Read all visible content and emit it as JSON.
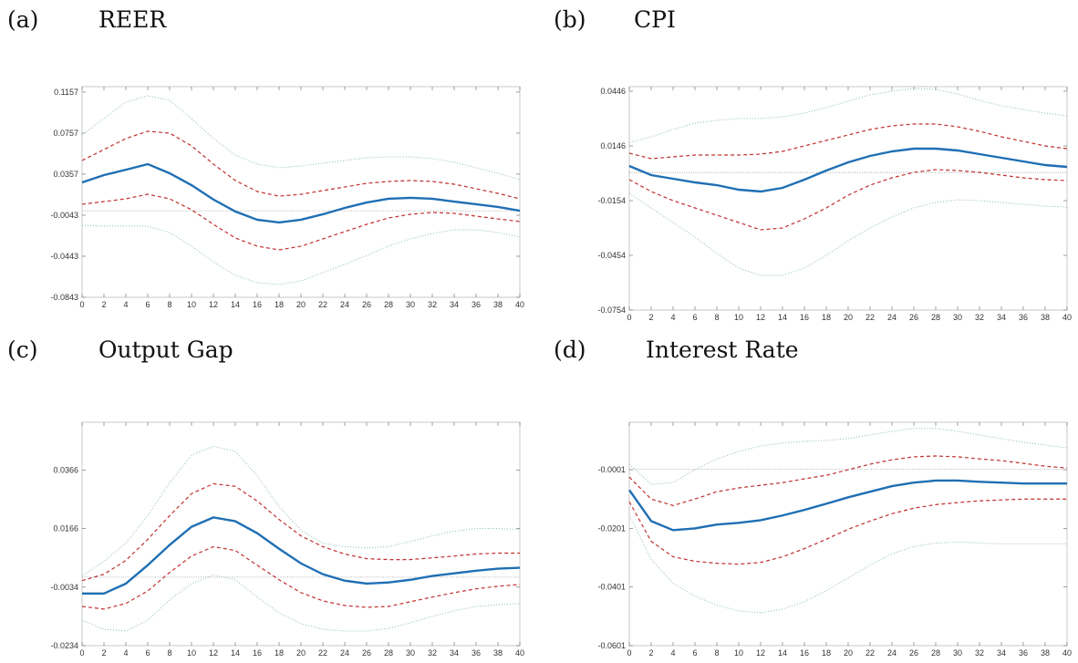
{
  "chart_data": [
    {
      "type": "line",
      "panel_label": "(a)",
      "title": "REER",
      "x": [
        0,
        2,
        4,
        6,
        8,
        10,
        12,
        14,
        16,
        18,
        20,
        22,
        24,
        26,
        28,
        30,
        32,
        34,
        36,
        38,
        40
      ],
      "xlim": [
        0,
        40
      ],
      "xticks": [
        0,
        2,
        4,
        6,
        8,
        10,
        12,
        14,
        16,
        18,
        20,
        22,
        24,
        26,
        28,
        30,
        32,
        34,
        36,
        38,
        40
      ],
      "ylim": [
        -0.0843,
        0.121
      ],
      "yticks": [
        -0.0843,
        -0.0443,
        -0.0043,
        0.0357,
        0.0757,
        0.1157
      ],
      "reference_line": 0,
      "series": [
        {
          "color": "#8cbcb0",
          "style": "dotted",
          "values": [
            0.0739,
            0.0899,
            0.1059,
            0.1121,
            0.1077,
            0.0899,
            0.0704,
            0.0544,
            0.0455,
            0.0419,
            0.0437,
            0.0464,
            0.049,
            0.0517,
            0.0526,
            0.0526,
            0.0508,
            0.0473,
            0.0419,
            0.0366,
            0.0304
          ]
        },
        {
          "color": "#8cbcb0",
          "style": "dotted",
          "values": [
            -0.0141,
            -0.015,
            -0.015,
            -0.015,
            -0.0212,
            -0.0345,
            -0.0497,
            -0.063,
            -0.0701,
            -0.0719,
            -0.0683,
            -0.0603,
            -0.0523,
            -0.0434,
            -0.0345,
            -0.0274,
            -0.0221,
            -0.0185,
            -0.0185,
            -0.0212,
            -0.0256
          ]
        },
        {
          "color": "#c0302f",
          "style": "dashed",
          "values": [
            0.049,
            0.0597,
            0.0704,
            0.0775,
            0.0757,
            0.0633,
            0.0455,
            0.0295,
            0.0188,
            0.0143,
            0.0161,
            0.0197,
            0.0232,
            0.0268,
            0.0286,
            0.0295,
            0.0286,
            0.0259,
            0.0215,
            0.017,
            0.0117
          ]
        },
        {
          "color": "#c0302f",
          "style": "dashed",
          "values": [
            0.0064,
            0.009,
            0.0117,
            0.0161,
            0.0117,
            0.001,
            -0.0132,
            -0.0265,
            -0.0345,
            -0.0381,
            -0.0345,
            -0.0274,
            -0.0203,
            -0.0132,
            -0.007,
            -0.0034,
            -0.0016,
            -0.0025,
            -0.0052,
            -0.0079,
            -0.0105
          ]
        },
        {
          "color": "#1f6fb4",
          "style": "solid",
          "values": [
            0.0277,
            0.0348,
            0.04,
            0.0455,
            0.0366,
            0.025,
            0.011,
            -0.0007,
            -0.0087,
            -0.0114,
            -0.0087,
            -0.0034,
            0.0028,
            0.0081,
            0.0117,
            0.0126,
            0.0117,
            0.009,
            0.0064,
            0.0037,
            0.0001
          ]
        }
      ]
    },
    {
      "type": "line",
      "panel_label": "(b)",
      "title": "CPI",
      "x": [
        0,
        2,
        4,
        6,
        8,
        10,
        12,
        14,
        16,
        18,
        20,
        22,
        24,
        26,
        28,
        30,
        32,
        34,
        36,
        38,
        40
      ],
      "xlim": [
        0,
        40
      ],
      "xticks": [
        0,
        2,
        4,
        6,
        8,
        10,
        12,
        14,
        16,
        18,
        20,
        22,
        24,
        26,
        28,
        30,
        32,
        34,
        36,
        38,
        40
      ],
      "ylim": [
        -0.0754,
        0.0471
      ],
      "yticks": [
        -0.0754,
        -0.0454,
        -0.0154,
        0.0146,
        0.0446
      ],
      "reference_line": 0,
      "series": [
        {
          "color": "#8cbcb0",
          "style": "dotted",
          "values": [
            0.0166,
            0.0196,
            0.0236,
            0.0271,
            0.0286,
            0.0296,
            0.0296,
            0.0306,
            0.0326,
            0.0356,
            0.0391,
            0.0426,
            0.0446,
            0.0461,
            0.0456,
            0.0431,
            0.0396,
            0.0366,
            0.0346,
            0.0326,
            0.0311
          ]
        },
        {
          "color": "#8cbcb0",
          "style": "dotted",
          "values": [
            -0.0114,
            -0.0194,
            -0.0274,
            -0.0354,
            -0.0444,
            -0.0524,
            -0.0564,
            -0.0564,
            -0.0524,
            -0.0454,
            -0.0374,
            -0.0304,
            -0.0244,
            -0.0194,
            -0.0164,
            -0.0149,
            -0.0154,
            -0.0164,
            -0.0174,
            -0.0184,
            -0.0189
          ]
        },
        {
          "color": "#c0302f",
          "style": "dashed",
          "values": [
            0.0106,
            0.0076,
            0.0086,
            0.0096,
            0.0096,
            0.0096,
            0.0101,
            0.0116,
            0.0146,
            0.0176,
            0.0206,
            0.0236,
            0.0256,
            0.0266,
            0.0266,
            0.0251,
            0.0226,
            0.0196,
            0.0171,
            0.0146,
            0.0131
          ]
        },
        {
          "color": "#c0302f",
          "style": "dashed",
          "values": [
            -0.0039,
            -0.0104,
            -0.0154,
            -0.0194,
            -0.0234,
            -0.0274,
            -0.0314,
            -0.0304,
            -0.0254,
            -0.0194,
            -0.0124,
            -0.0069,
            -0.0029,
            0.0001,
            0.0016,
            0.0011,
            0.0001,
            -0.0014,
            -0.0029,
            -0.0039,
            -0.0044
          ]
        },
        {
          "color": "#1f6fb4",
          "style": "solid",
          "values": [
            0.0036,
            -0.0014,
            -0.0034,
            -0.0054,
            -0.0069,
            -0.0094,
            -0.0104,
            -0.0084,
            -0.0039,
            0.0011,
            0.0056,
            0.0091,
            0.0116,
            0.0131,
            0.0131,
            0.0121,
            0.0101,
            0.0081,
            0.0061,
            0.0041,
            0.0031
          ]
        }
      ]
    },
    {
      "type": "line",
      "panel_label": "(c)",
      "title": "Output Gap",
      "x": [
        0,
        2,
        4,
        6,
        8,
        10,
        12,
        14,
        16,
        18,
        20,
        22,
        24,
        26,
        28,
        30,
        32,
        34,
        36,
        38,
        40
      ],
      "xlim": [
        0,
        40
      ],
      "xticks": [
        0,
        2,
        4,
        6,
        8,
        10,
        12,
        14,
        16,
        18,
        20,
        22,
        24,
        26,
        28,
        30,
        32,
        34,
        36,
        38,
        40
      ],
      "ylim": [
        -0.0234,
        0.0529
      ],
      "yticks": [
        -0.0234,
        -0.0034,
        0.0166,
        0.0366
      ],
      "reference_line": 0,
      "series": [
        {
          "color": "#8cbcb0",
          "style": "dotted",
          "values": [
            0.0004,
            0.0054,
            0.0116,
            0.021,
            0.0322,
            0.0416,
            0.0447,
            0.0429,
            0.0347,
            0.0241,
            0.016,
            0.0116,
            0.0104,
            0.01,
            0.0104,
            0.0122,
            0.0141,
            0.0157,
            0.0166,
            0.0166,
            0.0163
          ]
        },
        {
          "color": "#8cbcb0",
          "style": "dotted",
          "values": [
            -0.0147,
            -0.0178,
            -0.0184,
            -0.0147,
            -0.0078,
            -0.0022,
            0.0007,
            -0.0009,
            -0.0068,
            -0.0122,
            -0.0159,
            -0.0178,
            -0.0184,
            -0.0184,
            -0.0175,
            -0.0156,
            -0.0134,
            -0.0115,
            -0.01,
            -0.0094,
            -0.009
          ]
        },
        {
          "color": "#c0302f",
          "style": "dashed",
          "values": [
            -0.0012,
            0.001,
            0.0057,
            0.0129,
            0.021,
            0.0285,
            0.0319,
            0.031,
            0.026,
            0.0197,
            0.0141,
            0.0104,
            0.0079,
            0.0063,
            0.006,
            0.006,
            0.0066,
            0.0072,
            0.0079,
            0.0082,
            0.0082
          ]
        },
        {
          "color": "#c0302f",
          "style": "dashed",
          "values": [
            -0.01,
            -0.0109,
            -0.009,
            -0.0047,
            0.0016,
            0.0072,
            0.0104,
            0.0091,
            0.0041,
            -0.0009,
            -0.0053,
            -0.0081,
            -0.0097,
            -0.0103,
            -0.01,
            -0.0084,
            -0.0068,
            -0.0053,
            -0.004,
            -0.0031,
            -0.0025
          ]
        },
        {
          "color": "#1f6fb4",
          "style": "solid",
          "values": [
            -0.0056,
            -0.0056,
            -0.0022,
            0.0041,
            0.011,
            0.0172,
            0.0204,
            0.0191,
            0.015,
            0.0097,
            0.0047,
            0.001,
            -0.0012,
            -0.0022,
            -0.0018,
            -0.0009,
            0.0004,
            0.0013,
            0.0022,
            0.0029,
            0.0032
          ]
        }
      ]
    },
    {
      "type": "line",
      "panel_label": "(d)",
      "title": "Interest Rate",
      "x": [
        0,
        2,
        4,
        6,
        8,
        10,
        12,
        14,
        16,
        18,
        20,
        22,
        24,
        26,
        28,
        30,
        32,
        34,
        36,
        38,
        40
      ],
      "xlim": [
        0,
        40
      ],
      "xticks": [
        0,
        2,
        4,
        6,
        8,
        10,
        12,
        14,
        16,
        18,
        20,
        22,
        24,
        26,
        28,
        30,
        32,
        34,
        36,
        38,
        40
      ],
      "ylim": [
        -0.0601,
        0.0161
      ],
      "yticks": [
        -0.0601,
        -0.0401,
        -0.0201,
        -0.0001
      ],
      "reference_line": 0,
      "series": [
        {
          "color": "#8cbcb0",
          "style": "dotted",
          "values": [
            0.0018,
            -0.0051,
            -0.0045,
            -0.0001,
            0.0036,
            0.0061,
            0.008,
            0.009,
            0.0096,
            0.0099,
            0.0105,
            0.0118,
            0.013,
            0.014,
            0.014,
            0.013,
            0.0118,
            0.0105,
            0.0093,
            0.0083,
            0.0074
          ]
        },
        {
          "color": "#8cbcb0",
          "style": "dotted",
          "values": [
            -0.0154,
            -0.0307,
            -0.0388,
            -0.0432,
            -0.0463,
            -0.0482,
            -0.0489,
            -0.0476,
            -0.0451,
            -0.0413,
            -0.037,
            -0.0326,
            -0.0288,
            -0.0263,
            -0.0251,
            -0.0248,
            -0.0251,
            -0.0254,
            -0.0254,
            -0.0254,
            -0.0254
          ]
        },
        {
          "color": "#c0302f",
          "style": "dashed",
          "values": [
            -0.0026,
            -0.0101,
            -0.0123,
            -0.0101,
            -0.0076,
            -0.0063,
            -0.0054,
            -0.0045,
            -0.0032,
            -0.002,
            -0.0001,
            0.0018,
            0.0033,
            0.0043,
            0.0046,
            0.0043,
            0.0036,
            0.003,
            0.0021,
            0.0011,
            0.0005
          ]
        },
        {
          "color": "#c0302f",
          "style": "dashed",
          "values": [
            -0.011,
            -0.0245,
            -0.0298,
            -0.0313,
            -0.032,
            -0.0323,
            -0.0317,
            -0.0298,
            -0.027,
            -0.0238,
            -0.0204,
            -0.0176,
            -0.0151,
            -0.0132,
            -0.012,
            -0.0113,
            -0.0107,
            -0.0104,
            -0.0101,
            -0.0101,
            -0.0101
          ]
        },
        {
          "color": "#1f6fb4",
          "style": "solid",
          "values": [
            -0.007,
            -0.0176,
            -0.0207,
            -0.0201,
            -0.0188,
            -0.0182,
            -0.0173,
            -0.0157,
            -0.0138,
            -0.0117,
            -0.0095,
            -0.0076,
            -0.0057,
            -0.0045,
            -0.0038,
            -0.0038,
            -0.0042,
            -0.0045,
            -0.0048,
            -0.0048,
            -0.0048
          ]
        }
      ]
    }
  ]
}
